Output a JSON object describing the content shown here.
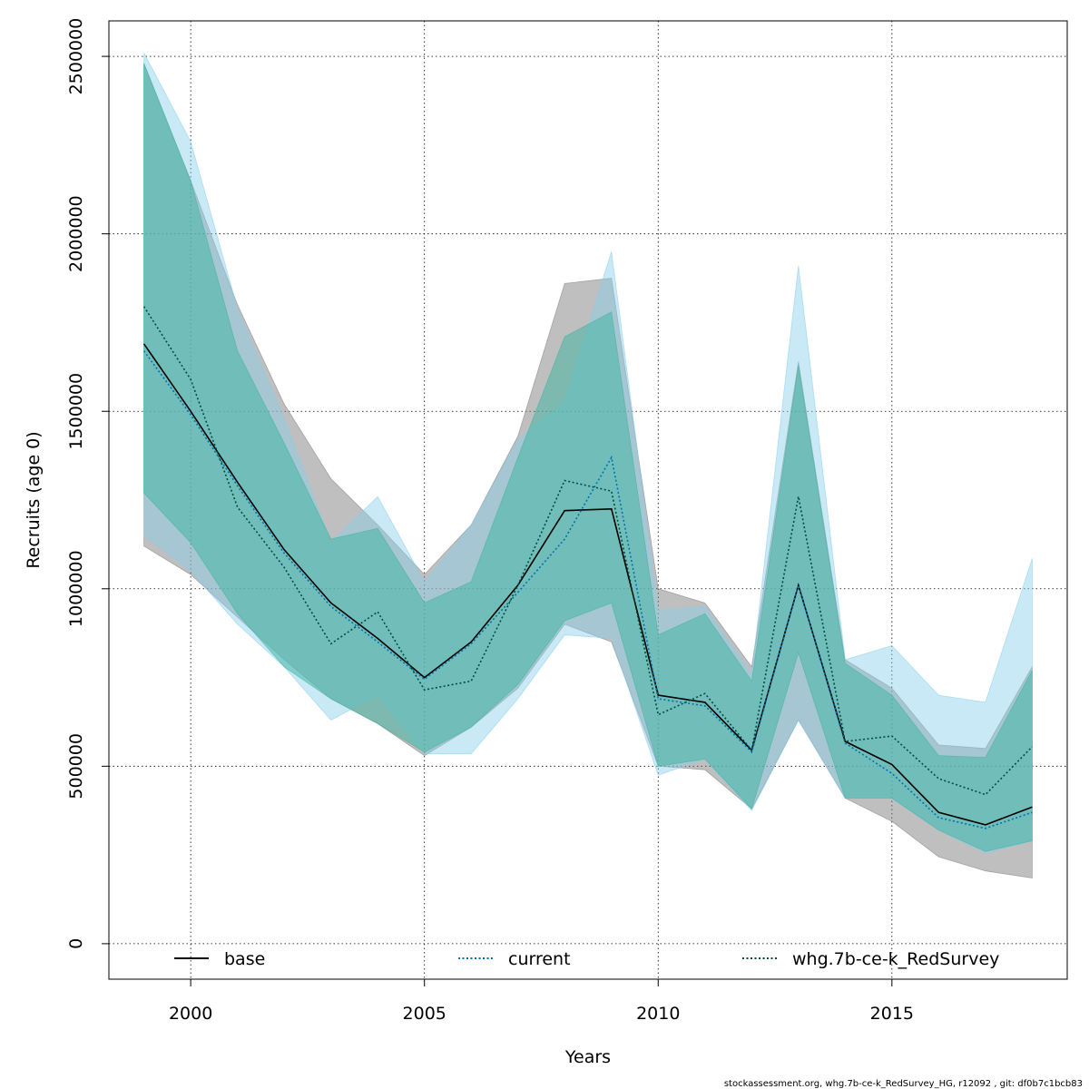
{
  "chart_data": {
    "type": "area",
    "xlabel": "Years",
    "ylabel": "Recruits (age 0)",
    "xlim": [
      1998.25,
      2018.75
    ],
    "ylim": [
      -100000,
      2600000
    ],
    "x_ticks": [
      2000,
      2005,
      2010,
      2015
    ],
    "y_ticks": [
      0,
      500000,
      1000000,
      1500000,
      2000000,
      2500000
    ],
    "grid": true,
    "legend_position": "bottom",
    "x": [
      1999,
      2000,
      2001,
      2002,
      2003,
      2004,
      2005,
      2006,
      2007,
      2008,
      2009,
      2010,
      2011,
      2012,
      2013,
      2014,
      2015,
      2016,
      2017,
      2018
    ],
    "series": [
      {
        "name": "base",
        "line_style": "solid",
        "line_color": "#000000",
        "band_color": "#808080",
        "values": [
          1690000,
          1500000,
          1300000,
          1110000,
          960000,
          860000,
          750000,
          850000,
          1010000,
          1220000,
          1225000,
          700000,
          680000,
          545000,
          1010000,
          570000,
          505000,
          370000,
          335000,
          385000
        ],
        "lower": [
          1120000,
          1040000,
          920000,
          800000,
          690000,
          620000,
          530000,
          610000,
          720000,
          900000,
          850000,
          500000,
          490000,
          380000,
          630000,
          410000,
          345000,
          245000,
          205000,
          185000
        ],
        "upper": [
          2480000,
          2150000,
          1800000,
          1520000,
          1310000,
          1180000,
          1040000,
          1180000,
          1430000,
          1860000,
          1875000,
          1000000,
          960000,
          780000,
          1640000,
          800000,
          720000,
          560000,
          550000,
          780000
        ]
      },
      {
        "name": "current",
        "line_style": "dotted",
        "line_color": "#0072B2",
        "band_color": "#87CEEB",
        "values": [
          1670000,
          1490000,
          1290000,
          1100000,
          950000,
          850000,
          745000,
          845000,
          990000,
          1140000,
          1370000,
          690000,
          670000,
          540000,
          1010000,
          565000,
          480000,
          355000,
          325000,
          370000
        ],
        "lower": [
          1150000,
          1050000,
          900000,
          780000,
          630000,
          700000,
          535000,
          535000,
          690000,
          870000,
          860000,
          475000,
          520000,
          375000,
          630000,
          410000,
          410000,
          320000,
          255000,
          290000
        ],
        "upper": [
          2510000,
          2260000,
          1790000,
          1480000,
          1130000,
          1260000,
          1020000,
          1180000,
          1420000,
          1530000,
          1950000,
          940000,
          950000,
          760000,
          1910000,
          800000,
          840000,
          700000,
          680000,
          1085000
        ]
      },
      {
        "name": "whg.7b-ce-k_RedSurvey",
        "line_style": "dotted",
        "line_color": "#004D40",
        "band_color": "#3CB4A0",
        "values": [
          1795000,
          1590000,
          1230000,
          1060000,
          845000,
          935000,
          715000,
          740000,
          1010000,
          1305000,
          1275000,
          645000,
          705000,
          545000,
          1260000,
          570000,
          585000,
          465000,
          420000,
          555000
        ],
        "lower": [
          1270000,
          1130000,
          930000,
          780000,
          690000,
          620000,
          540000,
          610000,
          730000,
          910000,
          960000,
          500000,
          520000,
          380000,
          820000,
          410000,
          410000,
          320000,
          260000,
          290000
        ],
        "upper": [
          2480000,
          2150000,
          1670000,
          1410000,
          1140000,
          1170000,
          960000,
          1020000,
          1370000,
          1710000,
          1780000,
          870000,
          930000,
          740000,
          1630000,
          790000,
          700000,
          530000,
          525000,
          770000
        ]
      }
    ]
  },
  "footer": "stockassessment.org, whg.7b-ce-k_RedSurvey_HG, r12092 , git: df0b7c1bcb83"
}
